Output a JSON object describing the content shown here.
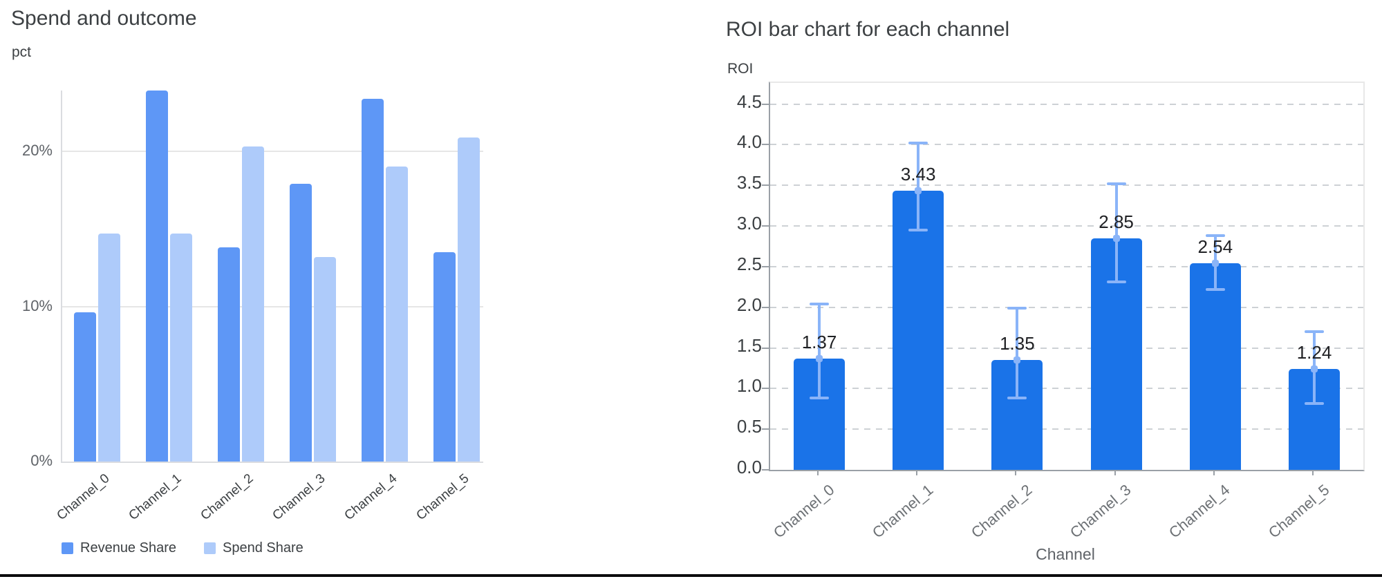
{
  "left_chart": {
    "title": "Spend and outcome",
    "y_axis_title": "pct"
  },
  "right_chart": {
    "title": "ROI bar chart for each channel",
    "y_axis_title": "ROI",
    "x_axis_title": "Channel"
  },
  "chart_data": [
    {
      "type": "bar",
      "title": "Spend and outcome",
      "ylabel": "pct",
      "xlabel": "",
      "categories": [
        "Channel_0",
        "Channel_1",
        "Channel_2",
        "Channel_3",
        "Channel_4",
        "Channel_5"
      ],
      "series": [
        {
          "name": "Revenue Share",
          "color": "#5e97f6",
          "values": [
            9.6,
            23.9,
            13.8,
            17.9,
            23.4,
            13.5
          ]
        },
        {
          "name": "Spend Share",
          "color": "#aecbfa",
          "values": [
            14.7,
            14.7,
            20.3,
            13.2,
            19.0,
            20.9
          ]
        }
      ],
      "y_ticks": [
        {
          "value": 0,
          "label": "0%"
        },
        {
          "value": 10,
          "label": "10%"
        },
        {
          "value": 20,
          "label": "20%"
        }
      ],
      "ylim": [
        0,
        23.92
      ],
      "grid": "solid",
      "legend_position": "bottom"
    },
    {
      "type": "bar",
      "title": "ROI bar chart for each channel",
      "ylabel": "ROI",
      "xlabel": "Channel",
      "categories": [
        "Channel_0",
        "Channel_1",
        "Channel_2",
        "Channel_3",
        "Channel_4",
        "Channel_5"
      ],
      "values": [
        1.37,
        3.43,
        1.35,
        2.85,
        2.54,
        1.24
      ],
      "value_labels": [
        "1.37",
        "3.43",
        "1.35",
        "2.85",
        "2.54",
        "1.24"
      ],
      "error_low": [
        0.88,
        2.95,
        0.88,
        2.31,
        2.22,
        0.82
      ],
      "error_high": [
        2.04,
        4.02,
        1.99,
        3.52,
        2.88,
        1.7
      ],
      "bar_color": "#1a73e8",
      "error_color": "#8ab4f8",
      "y_ticks": [
        {
          "value": 0.0,
          "label": "0.0"
        },
        {
          "value": 0.5,
          "label": "0.5"
        },
        {
          "value": 1.0,
          "label": "1.0"
        },
        {
          "value": 1.5,
          "label": "1.5"
        },
        {
          "value": 2.0,
          "label": "2.0"
        },
        {
          "value": 2.5,
          "label": "2.5"
        },
        {
          "value": 3.0,
          "label": "3.0"
        },
        {
          "value": 3.5,
          "label": "3.5"
        },
        {
          "value": 4.0,
          "label": "4.0"
        },
        {
          "value": 4.5,
          "label": "4.5"
        }
      ],
      "ylim": [
        0,
        4.76
      ],
      "grid": "dashed",
      "legend_position": "none"
    }
  ]
}
